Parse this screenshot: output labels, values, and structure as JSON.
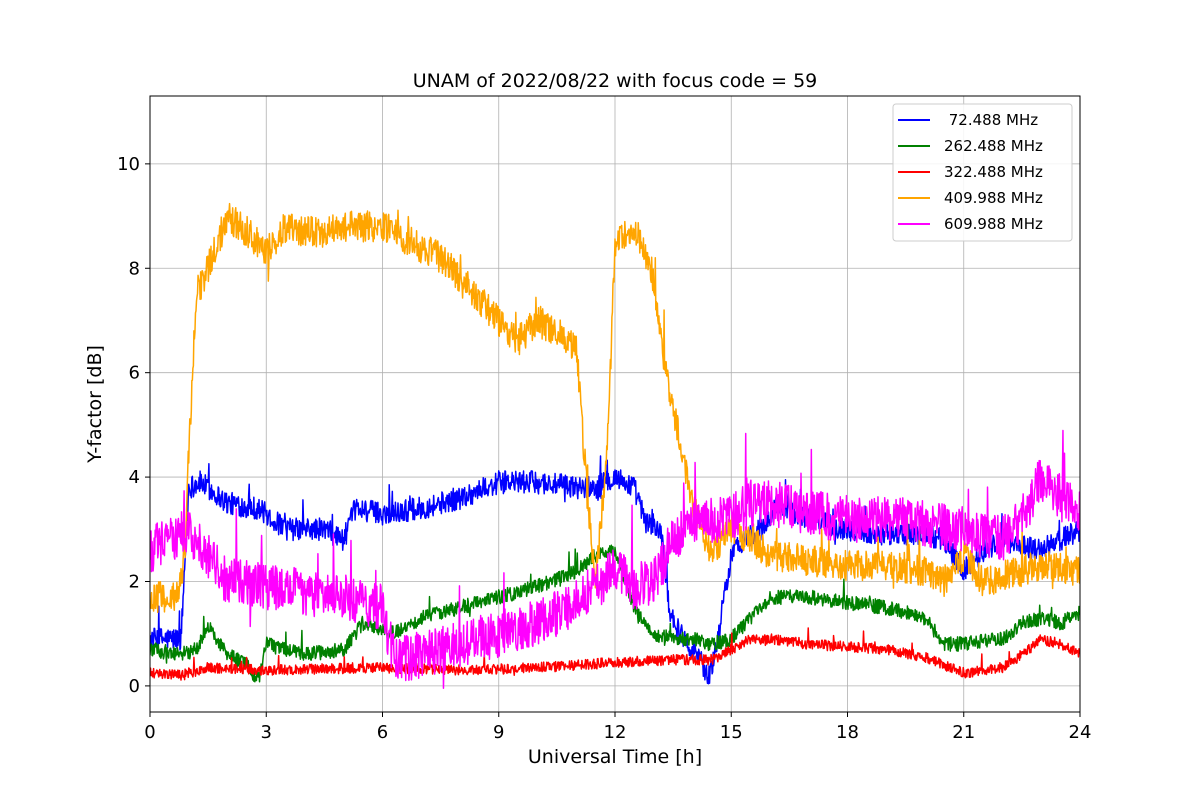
{
  "chart_data": {
    "type": "line",
    "title": "UNAM of 2022/08/22 with focus code = 59",
    "xlabel": "Universal Time [h]",
    "ylabel": "Y-factor [dB]",
    "xlim": [
      0,
      24
    ],
    "ylim": [
      -0.5,
      11.3
    ],
    "xticks": [
      0,
      3,
      6,
      9,
      12,
      15,
      18,
      21,
      24
    ],
    "yticks": [
      0,
      2,
      4,
      6,
      8,
      10
    ],
    "grid": true,
    "legend_position": "top-right",
    "series": [
      {
        "name": " 72.488 MHz",
        "color": "#0000ff",
        "noise": 0.22,
        "x": [
          0,
          0.8,
          1.0,
          1.3,
          2.0,
          2.8,
          3.5,
          4.5,
          5.0,
          5.3,
          6.0,
          7.0,
          8.0,
          9.0,
          10.0,
          11.0,
          11.5,
          12.0,
          12.5,
          12.8,
          13.0,
          13.2,
          13.4,
          13.6,
          14.0,
          14.2,
          14.4,
          14.6,
          15.0,
          15.3,
          15.8,
          16.2,
          17.0,
          18.0,
          19.0,
          20.0,
          20.5,
          21.0,
          21.5,
          22.0,
          22.5,
          23.0,
          23.5,
          24.0
        ],
        "y": [
          0.9,
          0.9,
          3.8,
          3.9,
          3.5,
          3.4,
          3.0,
          3.0,
          2.8,
          3.4,
          3.3,
          3.4,
          3.6,
          3.9,
          3.9,
          3.8,
          3.8,
          4.0,
          3.8,
          3.1,
          3.1,
          2.9,
          1.5,
          1.1,
          0.7,
          0.6,
          0.1,
          0.7,
          2.5,
          2.8,
          3.0,
          3.5,
          3.2,
          3.0,
          2.9,
          2.9,
          2.8,
          2.2,
          2.6,
          2.8,
          2.7,
          2.6,
          2.8,
          3.0
        ]
      },
      {
        "name": "262.488 MHz",
        "color": "#008000",
        "noise": 0.14,
        "x": [
          0,
          0.8,
          1.2,
          1.5,
          2.0,
          2.5,
          2.8,
          3.0,
          3.5,
          4.0,
          5.0,
          5.5,
          6.0,
          6.3,
          7.0,
          8.0,
          9.0,
          10.0,
          11.0,
          11.5,
          12.0,
          12.5,
          13.0,
          13.5,
          14.0,
          14.5,
          15.0,
          15.5,
          16.0,
          17.0,
          18.0,
          19.0,
          20.0,
          20.5,
          21.0,
          22.0,
          22.5,
          23.0,
          23.5,
          24.0
        ],
        "y": [
          0.7,
          0.6,
          0.7,
          1.1,
          0.6,
          0.4,
          0.1,
          0.8,
          0.7,
          0.6,
          0.7,
          1.2,
          1.1,
          1.0,
          1.3,
          1.5,
          1.7,
          1.9,
          2.2,
          2.5,
          2.6,
          1.5,
          1.0,
          0.9,
          0.9,
          0.8,
          0.9,
          1.3,
          1.7,
          1.7,
          1.6,
          1.5,
          1.3,
          0.8,
          0.8,
          0.9,
          1.2,
          1.3,
          1.2,
          1.4
        ]
      },
      {
        "name": "322.488 MHz",
        "color": "#ff0000",
        "noise": 0.1,
        "x": [
          0,
          0.8,
          1.5,
          3.0,
          6.0,
          8.0,
          10.0,
          12.0,
          13.5,
          14.5,
          15.0,
          15.5,
          16.0,
          17.0,
          18.0,
          19.0,
          20.0,
          20.5,
          21.0,
          22.0,
          22.5,
          23.0,
          23.5,
          24.0
        ],
        "y": [
          0.25,
          0.2,
          0.35,
          0.3,
          0.35,
          0.3,
          0.35,
          0.45,
          0.5,
          0.5,
          0.7,
          0.9,
          0.9,
          0.8,
          0.75,
          0.7,
          0.55,
          0.4,
          0.25,
          0.35,
          0.6,
          0.9,
          0.8,
          0.6
        ]
      },
      {
        "name": "409.988 MHz",
        "color": "#ffa500",
        "noise": 0.3,
        "x": [
          0,
          0.7,
          0.9,
          1.0,
          1.1,
          1.2,
          1.5,
          2.0,
          2.5,
          3.0,
          3.5,
          4.0,
          4.5,
          5.0,
          6.0,
          7.0,
          7.5,
          8.0,
          9.0,
          9.5,
          10.0,
          11.0,
          11.3,
          11.5,
          11.8,
          12.0,
          12.5,
          13.0,
          13.3,
          13.6,
          14.0,
          14.5,
          15.0,
          15.5,
          16.0,
          17.0,
          18.0,
          19.0,
          20.0,
          20.5,
          21.0,
          21.5,
          22.0,
          23.0,
          24.0
        ],
        "y": [
          1.7,
          1.7,
          2.5,
          4.5,
          6.0,
          7.5,
          8.0,
          9.0,
          8.7,
          8.3,
          8.8,
          8.7,
          8.7,
          8.8,
          8.8,
          8.4,
          8.2,
          7.8,
          7.0,
          6.6,
          7.0,
          6.5,
          3.5,
          2.0,
          4.5,
          8.5,
          8.8,
          7.8,
          6.0,
          5.0,
          3.5,
          2.5,
          3.0,
          2.8,
          2.5,
          2.4,
          2.3,
          2.3,
          2.2,
          2.0,
          2.5,
          2.0,
          2.1,
          2.3,
          2.2
        ]
      },
      {
        "name": "609.988 MHz",
        "color": "#ff00ff",
        "noise": 0.45,
        "x": [
          0,
          0.5,
          1.0,
          1.5,
          2.0,
          3.0,
          4.0,
          5.0,
          6.0,
          6.3,
          7.0,
          8.0,
          9.0,
          10.0,
          11.0,
          12.0,
          12.5,
          13.0,
          13.5,
          14.0,
          15.0,
          15.5,
          16.0,
          17.0,
          18.0,
          19.0,
          20.0,
          21.0,
          22.0,
          22.5,
          23.0,
          23.5,
          24.0
        ],
        "y": [
          2.6,
          2.8,
          3.0,
          2.5,
          2.0,
          1.9,
          1.8,
          1.7,
          1.5,
          0.5,
          0.6,
          0.8,
          1.0,
          1.2,
          1.6,
          2.2,
          1.9,
          2.0,
          2.8,
          3.1,
          3.2,
          3.5,
          3.5,
          3.3,
          3.2,
          3.2,
          3.1,
          3.0,
          2.8,
          3.2,
          4.0,
          3.6,
          3.4
        ]
      }
    ]
  }
}
